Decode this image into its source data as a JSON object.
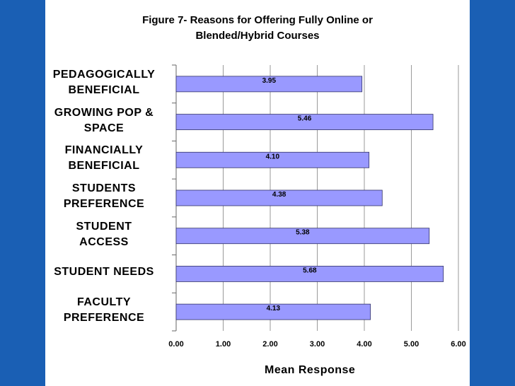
{
  "chart_data": {
    "type": "bar",
    "orientation": "horizontal",
    "title": "Figure 7- Reasons for Offering Fully Online or Blended/Hybrid Courses",
    "title_lines": [
      "Figure 7- Reasons for Offering Fully Online or",
      "Blended/Hybrid Courses"
    ],
    "xlabel": "Mean Response",
    "categories": [
      [
        "PEDAGOGICALLY",
        "BENEFICIAL"
      ],
      [
        "GROWING POP &",
        "SPACE"
      ],
      [
        "FINANCIALLY",
        "BENEFICIAL"
      ],
      [
        "STUDENTS",
        "PREFERENCE"
      ],
      [
        "STUDENT",
        "ACCESS"
      ],
      [
        "STUDENT NEEDS"
      ],
      [
        "FACULTY",
        "PREFERENCE"
      ]
    ],
    "values": [
      3.95,
      5.46,
      4.1,
      4.38,
      5.38,
      5.68,
      4.13
    ],
    "data_labels": [
      "3.95",
      "5.46",
      "4.10",
      "4.38",
      "5.38",
      "5.68",
      "4.13"
    ],
    "xlim": [
      0,
      6
    ],
    "xticks": [
      "0.00",
      "1.00",
      "2.00",
      "3.00",
      "4.00",
      "5.00",
      "6.00"
    ],
    "grid": "vertical",
    "bar_color": "#9999ff",
    "bar_edge_color": "#333366",
    "background_color": "#1a5fb4"
  }
}
